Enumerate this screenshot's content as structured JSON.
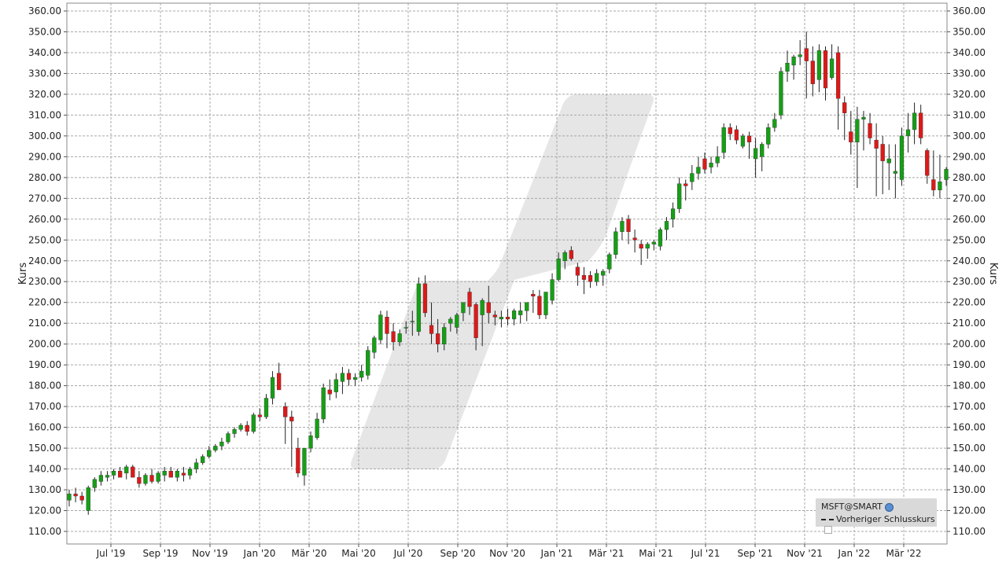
{
  "chart_data": {
    "type": "candlestick",
    "ylabel": "Kurs",
    "ylim": [
      105,
      363
    ],
    "y_ticks": [
      "110.00",
      "120.00",
      "130.00",
      "140.00",
      "150.00",
      "160.00",
      "170.00",
      "180.00",
      "190.00",
      "200.00",
      "210.00",
      "220.00",
      "230.00",
      "240.00",
      "250.00",
      "260.00",
      "270.00",
      "280.00",
      "290.00",
      "300.00",
      "310.00",
      "320.00",
      "330.00",
      "340.00",
      "350.00",
      "360.00"
    ],
    "x_ticks": [
      "Jul '19",
      "Sep '19",
      "Nov '19",
      "Jan '20",
      "Mär '20",
      "Mai '20",
      "Jul '20",
      "Sep '20",
      "Nov '20",
      "Jan '21",
      "Mär '21",
      "Mai '21",
      "Jul '21",
      "Sep '21",
      "Nov '21",
      "Jan '22",
      "Mär '22"
    ],
    "grid": true,
    "legend_position": "bottom-right",
    "legend": {
      "symbol": "MSFT@SMART",
      "prev_close_label": "Vorheriger Schlusskurs"
    },
    "colors": {
      "up": "#14a014",
      "down": "#e01818",
      "grid": "#a8a8a8",
      "watermark": "#e6e6e6"
    },
    "series": [
      {
        "note": "weekly OHLC, [open, high, low, close]",
        "ohlc": [
          [
            125,
            130,
            122,
            128
          ],
          [
            128,
            131,
            124,
            127
          ],
          [
            127,
            129,
            123,
            125
          ],
          [
            120,
            132,
            118,
            131
          ],
          [
            131,
            136,
            129,
            135
          ],
          [
            134,
            139,
            132,
            137
          ],
          [
            136,
            139,
            134,
            137
          ],
          [
            137,
            140,
            135,
            139
          ],
          [
            139,
            141,
            136,
            136
          ],
          [
            138,
            142,
            135,
            141
          ],
          [
            141,
            142,
            137,
            136
          ],
          [
            136,
            139,
            131,
            133
          ],
          [
            133,
            138,
            132,
            137
          ],
          [
            137,
            140,
            133,
            134
          ],
          [
            134,
            139,
            133,
            138
          ],
          [
            137,
            141,
            134,
            139
          ],
          [
            139,
            141,
            136,
            136
          ],
          [
            136,
            140,
            134,
            139
          ],
          [
            138,
            141,
            134,
            137
          ],
          [
            137,
            141,
            135,
            140
          ],
          [
            140,
            145,
            138,
            143
          ],
          [
            143,
            147,
            142,
            146
          ],
          [
            146,
            151,
            145,
            149
          ],
          [
            149,
            152,
            148,
            151
          ],
          [
            151,
            155,
            149,
            153
          ],
          [
            153,
            158,
            152,
            157
          ],
          [
            157,
            160,
            155,
            159
          ],
          [
            159,
            162,
            158,
            161
          ],
          [
            161,
            163,
            156,
            158
          ],
          [
            158,
            167,
            157,
            166
          ],
          [
            166,
            169,
            163,
            165
          ],
          [
            165,
            176,
            164,
            174
          ],
          [
            174,
            187,
            171,
            184
          ],
          [
            186,
            191,
            178,
            178
          ],
          [
            170,
            172,
            152,
            165
          ],
          [
            165,
            168,
            141,
            163
          ],
          [
            150,
            155,
            136,
            138
          ],
          [
            137,
            150,
            132,
            150
          ],
          [
            150,
            158,
            148,
            156
          ],
          [
            155,
            167,
            154,
            164
          ],
          [
            164,
            181,
            162,
            179
          ],
          [
            178,
            183,
            173,
            176
          ],
          [
            177,
            186,
            174,
            183
          ],
          [
            182,
            189,
            176,
            186
          ],
          [
            186,
            188,
            180,
            183
          ],
          [
            183,
            186,
            180,
            184
          ],
          [
            184,
            190,
            182,
            187
          ],
          [
            185,
            199,
            183,
            197
          ],
          [
            196,
            204,
            193,
            203
          ],
          [
            202,
            216,
            200,
            214
          ],
          [
            213,
            216,
            198,
            205
          ],
          [
            206,
            210,
            197,
            201
          ],
          [
            201,
            207,
            199,
            205
          ],
          [
            208,
            211,
            205,
            208
          ],
          [
            211,
            216,
            204,
            211
          ],
          [
            206,
            232,
            204,
            229
          ],
          [
            229,
            233,
            213,
            215
          ],
          [
            209,
            220,
            200,
            205
          ],
          [
            205,
            212,
            196,
            200
          ],
          [
            200,
            210,
            197,
            208
          ],
          [
            210,
            213,
            206,
            212
          ],
          [
            208,
            215,
            205,
            214
          ],
          [
            215,
            220,
            211,
            220
          ],
          [
            225,
            227,
            214,
            218
          ],
          [
            219,
            220,
            197,
            203
          ],
          [
            214,
            222,
            199,
            221
          ],
          [
            220,
            228,
            210,
            215
          ],
          [
            214,
            216,
            209,
            213
          ],
          [
            212,
            216,
            208,
            213
          ],
          [
            213,
            217,
            209,
            212
          ],
          [
            212,
            217,
            209,
            216
          ],
          [
            214,
            220,
            210,
            216
          ],
          [
            216,
            219,
            211,
            220
          ],
          [
            224,
            226,
            215,
            223
          ],
          [
            223,
            226,
            212,
            214
          ],
          [
            214,
            225,
            212,
            225
          ],
          [
            221,
            234,
            219,
            231
          ],
          [
            231,
            244,
            230,
            241
          ],
          [
            240,
            245,
            236,
            244
          ],
          [
            245,
            247,
            240,
            241
          ],
          [
            237,
            239,
            228,
            233
          ],
          [
            233,
            237,
            224,
            231
          ],
          [
            233,
            235,
            227,
            230
          ],
          [
            230,
            236,
            228,
            234
          ],
          [
            233,
            236,
            228,
            235
          ],
          [
            236,
            244,
            234,
            243
          ],
          [
            243,
            256,
            241,
            254
          ],
          [
            254,
            261,
            250,
            259
          ],
          [
            260,
            262,
            248,
            254
          ],
          [
            251,
            255,
            244,
            250
          ],
          [
            248,
            250,
            238,
            246
          ],
          [
            246,
            249,
            241,
            248
          ],
          [
            248,
            250,
            245,
            249
          ],
          [
            247,
            256,
            245,
            255
          ],
          [
            255,
            261,
            250,
            259
          ],
          [
            260,
            268,
            256,
            265
          ],
          [
            265,
            280,
            263,
            277
          ],
          [
            277,
            279,
            269,
            276
          ],
          [
            278,
            286,
            274,
            282
          ],
          [
            282,
            290,
            279,
            285
          ],
          [
            289,
            292,
            282,
            284
          ],
          [
            285,
            290,
            282,
            287
          ],
          [
            287,
            295,
            285,
            290
          ],
          [
            292,
            306,
            289,
            304
          ],
          [
            304,
            306,
            298,
            301
          ],
          [
            303,
            305,
            296,
            298
          ],
          [
            295,
            301,
            294,
            300
          ],
          [
            300,
            302,
            289,
            297
          ],
          [
            289,
            299,
            280,
            294
          ],
          [
            290,
            297,
            283,
            296
          ],
          [
            296,
            306,
            294,
            304
          ],
          [
            304,
            311,
            302,
            308
          ],
          [
            310,
            333,
            308,
            331
          ],
          [
            331,
            341,
            326,
            335
          ],
          [
            334,
            339,
            327,
            338
          ],
          [
            338,
            346,
            334,
            339
          ],
          [
            342,
            350,
            318,
            336
          ],
          [
            336,
            343,
            319,
            325
          ],
          [
            327,
            344,
            321,
            341
          ],
          [
            341,
            343,
            317,
            323
          ],
          [
            328,
            344,
            327,
            337
          ],
          [
            340,
            343,
            303,
            318
          ],
          [
            316,
            319,
            298,
            311
          ],
          [
            302,
            312,
            291,
            297
          ],
          [
            297,
            314,
            275,
            308
          ],
          [
            308,
            312,
            293,
            309
          ],
          [
            306,
            311,
            296,
            299
          ],
          [
            298,
            306,
            271,
            294
          ],
          [
            296,
            300,
            272,
            288
          ],
          [
            287,
            296,
            274,
            289
          ],
          [
            282,
            296,
            270,
            283
          ],
          [
            279,
            304,
            276,
            300
          ],
          [
            300,
            311,
            292,
            303
          ],
          [
            303,
            316,
            296,
            311
          ],
          [
            311,
            315,
            296,
            299
          ],
          [
            293,
            294,
            277,
            281
          ],
          [
            279,
            293,
            271,
            274
          ],
          [
            274,
            291,
            270,
            278
          ],
          [
            279,
            285,
            276,
            284
          ]
        ]
      }
    ]
  }
}
